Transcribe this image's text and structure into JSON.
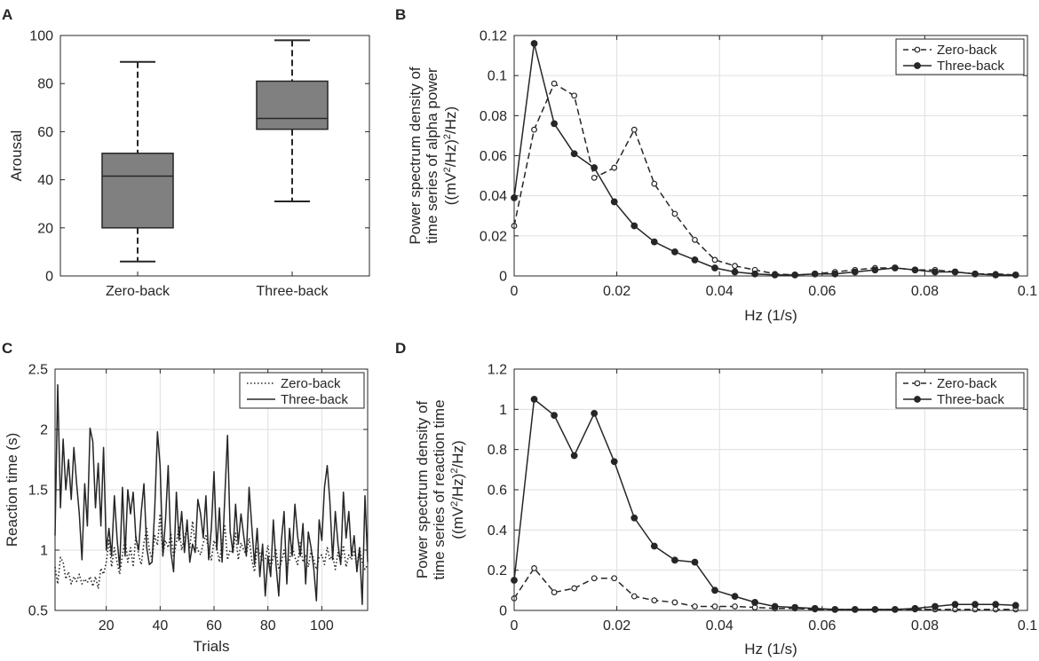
{
  "chart_data": [
    {
      "panel": "A",
      "type": "box",
      "ylabel": "Arousal",
      "ylim": [
        0,
        100
      ],
      "yticks": [
        "0",
        "20",
        "40",
        "60",
        "80",
        "100"
      ],
      "categories": [
        "Zero-back",
        "Three-back"
      ],
      "boxes": [
        {
          "name": "Zero-back",
          "min": 6,
          "q1": 20,
          "median": 41.5,
          "q3": 51,
          "max": 89
        },
        {
          "name": "Three-back",
          "min": 31,
          "q1": 61,
          "median": 65.5,
          "q3": 81,
          "max": 98
        }
      ],
      "grid": false,
      "box_color": "#808080"
    },
    {
      "panel": "B",
      "type": "line",
      "xlabel": "Hz (1/s)",
      "ylabel_lines": [
        "Power spectrum density of",
        "time series of alpha power"
      ],
      "ylabel_unit": {
        "a": "((mV",
        "b": "2",
        "c": "/Hz)",
        "d": "2",
        "e": "/Hz)"
      },
      "xlim": [
        0,
        0.1
      ],
      "ylim": [
        0,
        0.12
      ],
      "xticks": [
        "0",
        "0.02",
        "0.04",
        "0.06",
        "0.08",
        "0.1"
      ],
      "yticks": [
        "0",
        "0.02",
        "0.04",
        "0.06",
        "0.08",
        "0.1",
        "0.12"
      ],
      "grid": true,
      "legend": "top-right",
      "series": [
        {
          "name": "Zero-back",
          "style": "dashed-open-circle",
          "x": [
            0,
            0.0039,
            0.0078,
            0.0117,
            0.0156,
            0.0195,
            0.0234,
            0.0273,
            0.0313,
            0.0352,
            0.0391,
            0.043,
            0.0469,
            0.0508,
            0.0547,
            0.0586,
            0.0625,
            0.0664,
            0.0703,
            0.0742,
            0.0781,
            0.082,
            0.0859,
            0.0898,
            0.0938,
            0.0977
          ],
          "y": [
            0.025,
            0.073,
            0.096,
            0.09,
            0.049,
            0.054,
            0.073,
            0.046,
            0.031,
            0.018,
            0.008,
            0.005,
            0.003,
            0.001,
            0.0005,
            0.001,
            0.002,
            0.003,
            0.004,
            0.004,
            0.003,
            0.003,
            0.002,
            0.001,
            0.001,
            0.0005
          ]
        },
        {
          "name": "Three-back",
          "style": "solid-filled-circle",
          "x": [
            0,
            0.0039,
            0.0078,
            0.0117,
            0.0156,
            0.0195,
            0.0234,
            0.0273,
            0.0313,
            0.0352,
            0.0391,
            0.043,
            0.0469,
            0.0508,
            0.0547,
            0.0586,
            0.0625,
            0.0664,
            0.0703,
            0.0742,
            0.0781,
            0.082,
            0.0859,
            0.0898,
            0.0938,
            0.0977
          ],
          "y": [
            0.039,
            0.116,
            0.076,
            0.061,
            0.054,
            0.037,
            0.025,
            0.017,
            0.012,
            0.008,
            0.004,
            0.002,
            0.001,
            0.0005,
            0.0005,
            0.001,
            0.001,
            0.002,
            0.003,
            0.004,
            0.003,
            0.002,
            0.002,
            0.001,
            0.0005,
            0.0005
          ]
        }
      ]
    },
    {
      "panel": "C",
      "type": "line",
      "xlabel": "Trials",
      "ylabel": "Reaction time (s)",
      "xlim": [
        1,
        117
      ],
      "ylim": [
        0.5,
        2.5
      ],
      "xticks": [
        "20",
        "40",
        "60",
        "80",
        "100"
      ],
      "yticks": [
        "0.5",
        "1",
        "1.5",
        "2",
        "2.5"
      ],
      "grid": true,
      "legend": "top-right",
      "series": [
        {
          "name": "Zero-back",
          "style": "dotted",
          "y": [
            0.86,
            0.72,
            0.94,
            0.9,
            0.76,
            0.82,
            0.72,
            0.78,
            0.74,
            0.8,
            0.72,
            0.76,
            0.73,
            0.78,
            0.7,
            0.78,
            0.68,
            0.85,
            0.8,
            0.9,
            1.08,
            0.86,
            1.02,
            0.9,
            0.8,
            0.96,
            1.1,
            0.9,
            1.02,
            0.86,
            1.12,
            0.96,
            0.88,
            1.06,
            1.18,
            1.0,
            0.92,
            1.12,
            1.04,
            1.3,
            0.96,
            1.08,
            1.02,
            1.14,
            0.94,
            1.06,
            1.2,
            1.0,
            1.12,
            1.16,
            1.02,
            1.24,
            1.06,
            1.0,
            0.96,
            1.06,
            1.12,
            1.0,
            0.92,
            1.08,
            1.02,
            0.9,
            1.06,
            1.2,
            0.92,
            1.0,
            0.98,
            1.14,
            0.92,
            1.06,
            1.0,
            0.96,
            1.1,
            0.92,
            0.82,
            1.02,
            0.98,
            0.9,
            0.92,
            1.04,
            0.86,
            0.94,
            1.0,
            0.84,
            0.9,
            1.0,
            0.86,
            0.92,
            1.04,
            0.94,
            0.88,
            1.06,
            0.9,
            0.96,
            0.86,
            1.0,
            0.92,
            0.84,
            0.94,
            0.96,
            0.88,
            1.02,
            0.92,
            0.96,
            0.84,
            0.98,
            0.9,
            1.04,
            0.86,
            0.96,
            0.92,
            1.0,
            0.86,
            1.02,
            0.9,
            0.84,
            0.88
          ]
        },
        {
          "name": "Three-back",
          "style": "solid",
          "y": [
            1.12,
            2.37,
            1.35,
            1.92,
            1.5,
            1.75,
            1.42,
            1.85,
            1.55,
            1.3,
            0.92,
            1.55,
            1.2,
            2.01,
            1.9,
            1.35,
            1.72,
            1.2,
            1.85,
            1.0,
            1.18,
            0.95,
            1.45,
            1.1,
            0.85,
            1.52,
            0.95,
            1.5,
            1.3,
            1.48,
            1.1,
            1.0,
            1.32,
            1.55,
            1.02,
            0.88,
            0.9,
            1.35,
            1.98,
            1.7,
            0.95,
            1.25,
            1.7,
            0.98,
            0.82,
            1.48,
            1.08,
            1.32,
            0.98,
            1.25,
            0.9,
            1.05,
            0.98,
            1.42,
            1.3,
            1.1,
            1.45,
            0.92,
            1.18,
            1.65,
            1.0,
            1.35,
            0.9,
            1.45,
            1.95,
            1.15,
            0.98,
            1.38,
            1.05,
            1.3,
            1.12,
            0.95,
            1.52,
            1.2,
            0.88,
            1.18,
            0.78,
            1.05,
            0.62,
            0.95,
            0.78,
            1.25,
            0.88,
            0.62,
            1.08,
            1.32,
            0.72,
            1.18,
            0.95,
            1.38,
            1.12,
            0.95,
            1.22,
            0.72,
            1.15,
            1.02,
            0.85,
            0.58,
            1.25,
            1.08,
            1.52,
            1.7,
            1.4,
            0.92,
            1.32,
            1.05,
            0.88,
            1.48,
            1.1,
            1.32,
            0.95,
            1.12,
            0.82,
            1.02,
            0.55,
            1.45,
            0.9
          ]
        }
      ]
    },
    {
      "panel": "D",
      "type": "line",
      "xlabel": "Hz (1/s)",
      "ylabel_lines": [
        "Power spectrum density of",
        "time series of reaction time"
      ],
      "ylabel_unit": {
        "a": "((mV",
        "b": "2",
        "c": "/Hz)",
        "d": "2",
        "e": "/Hz)"
      },
      "xlim": [
        0,
        0.1
      ],
      "ylim": [
        0,
        1.2
      ],
      "xticks": [
        "0",
        "0.02",
        "0.04",
        "0.06",
        "0.08",
        "0.1"
      ],
      "yticks": [
        "0",
        "0.2",
        "0.4",
        "0.6",
        "0.8",
        "1",
        "1.2"
      ],
      "grid": true,
      "legend": "top-right",
      "series": [
        {
          "name": "Zero-back",
          "style": "dashed-open-circle",
          "x": [
            0,
            0.0039,
            0.0078,
            0.0117,
            0.0156,
            0.0195,
            0.0234,
            0.0273,
            0.0313,
            0.0352,
            0.0391,
            0.043,
            0.0469,
            0.0508,
            0.0547,
            0.0586,
            0.0625,
            0.0664,
            0.0703,
            0.0742,
            0.0781,
            0.082,
            0.0859,
            0.0898,
            0.0938,
            0.0977
          ],
          "y": [
            0.06,
            0.21,
            0.09,
            0.11,
            0.16,
            0.16,
            0.07,
            0.05,
            0.04,
            0.02,
            0.02,
            0.02,
            0.015,
            0.01,
            0.01,
            0.005,
            0.005,
            0.005,
            0.005,
            0.005,
            0.005,
            0.005,
            0.005,
            0.005,
            0.005,
            0.005
          ]
        },
        {
          "name": "Three-back",
          "style": "solid-filled-circle",
          "x": [
            0,
            0.0039,
            0.0078,
            0.0117,
            0.0156,
            0.0195,
            0.0234,
            0.0273,
            0.0313,
            0.0352,
            0.0391,
            0.043,
            0.0469,
            0.0508,
            0.0547,
            0.0586,
            0.0625,
            0.0664,
            0.0703,
            0.0742,
            0.0781,
            0.082,
            0.0859,
            0.0898,
            0.0938,
            0.0977
          ],
          "y": [
            0.15,
            1.05,
            0.97,
            0.77,
            0.98,
            0.74,
            0.46,
            0.32,
            0.25,
            0.24,
            0.1,
            0.07,
            0.04,
            0.02,
            0.015,
            0.01,
            0.005,
            0.005,
            0.005,
            0.005,
            0.01,
            0.02,
            0.03,
            0.03,
            0.03,
            0.025
          ]
        }
      ]
    }
  ]
}
